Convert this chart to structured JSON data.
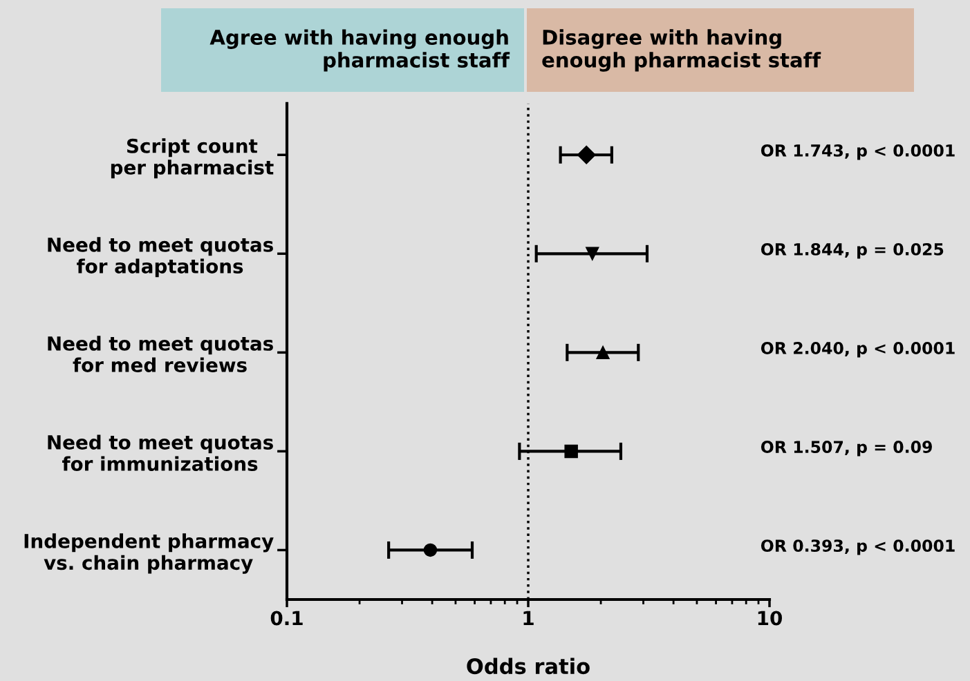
{
  "chart_data": {
    "type": "scatter",
    "orientation": "horizontal",
    "log": "x",
    "xlabel": "Odds ratio",
    "categories": [
      "Script count\nper pharmacist",
      "Need to meet quotas\nfor adaptations",
      "Need to meet quotas\nfor med reviews",
      "Need to meet quotas\nfor immunizations",
      "Independent pharmacy\nvs. chain pharmacy"
    ],
    "xlim": [
      0.1,
      10
    ],
    "xticks": [
      0.1,
      1,
      10
    ],
    "grid": false,
    "legend": false,
    "series": [
      {
        "color": "#000000",
        "marker": "diamond",
        "values": [
          1.743,
          null,
          null,
          null,
          null
        ],
        "errors": [
          [
            1.36,
            2.22
          ],
          null,
          null,
          null,
          null
        ]
      },
      {
        "color": "#000000",
        "marker": "triangle-down",
        "values": [
          null,
          1.844,
          null,
          null,
          null
        ],
        "errors": [
          null,
          [
            1.08,
            3.11
          ],
          null,
          null,
          null
        ]
      },
      {
        "color": "#000000",
        "marker": "triangle",
        "values": [
          null,
          null,
          2.04,
          null,
          null
        ],
        "errors": [
          null,
          null,
          [
            1.45,
            2.86
          ],
          null,
          null
        ]
      },
      {
        "color": "#000000",
        "marker": "square",
        "values": [
          null,
          null,
          null,
          1.507,
          null
        ],
        "errors": [
          null,
          null,
          null,
          [
            0.92,
            2.42
          ],
          null
        ]
      },
      {
        "color": "#000000",
        "marker": "circle",
        "values": [
          null,
          null,
          null,
          null,
          0.393
        ],
        "errors": [
          null,
          null,
          null,
          null,
          [
            0.264,
            0.586
          ]
        ]
      }
    ],
    "ref_lines": [
      {
        "axis": "x",
        "value": 1,
        "color": "#000000",
        "line_style": "dotted"
      }
    ],
    "annotations": [
      "Agree with having enough\npharmacist staff",
      "Disagree with having\nenough pharmacist staff",
      "OR 1.743, p < 0.0001",
      "OR 1.844, p = 0.025",
      "OR 2.040, p < 0.0001",
      "OR 1.507, p = 0.09",
      "OR 0.393, p < 0.0001"
    ]
  }
}
